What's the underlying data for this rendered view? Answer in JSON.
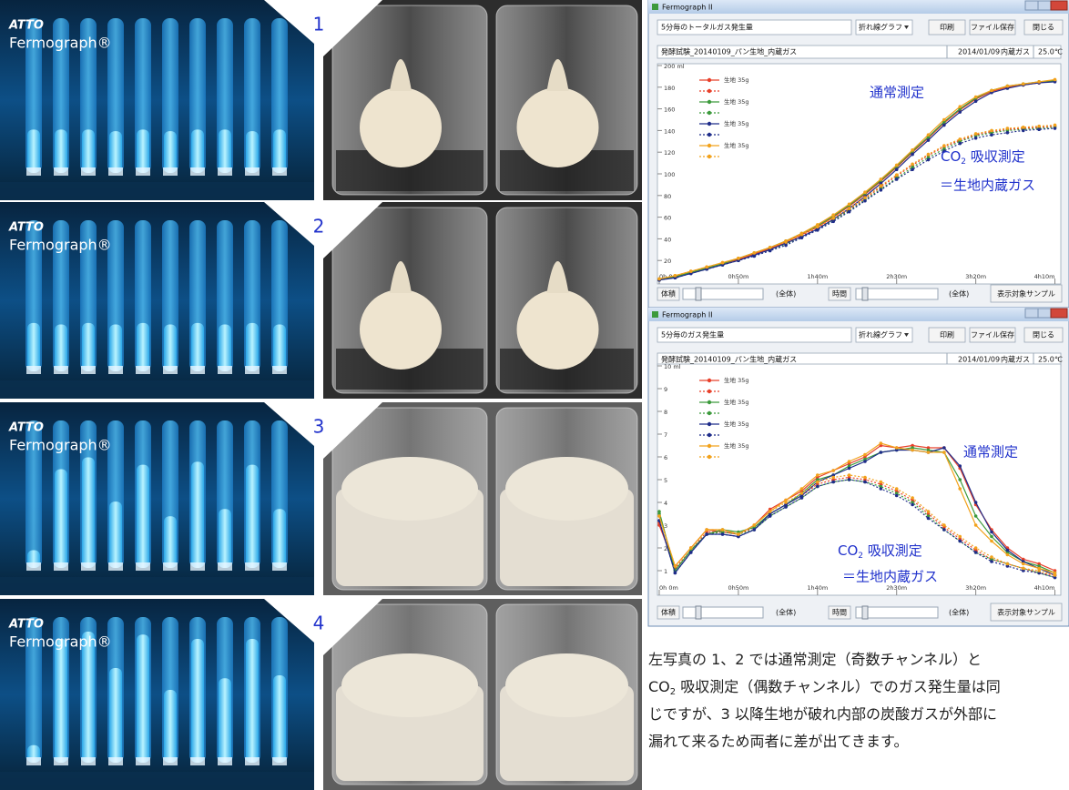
{
  "photos": {
    "logo": "ATTO",
    "product": "Fermograph®",
    "panels": [
      "1",
      "2",
      "3",
      "4"
    ]
  },
  "windows": [
    {
      "title": "Fermograph II",
      "measure": "5分毎のトータルガス発生量",
      "graph_type": "折れ線グラフ",
      "buttons": [
        "印刷",
        "ファイル保存",
        "閉じる"
      ],
      "file": "発酵試験_20140109_パン生地_内蔵ガス",
      "date": "2014/01/09",
      "gas": "内蔵ガス",
      "temp": "25.0℃",
      "controls": [
        "体積",
        "(全体)",
        "時間",
        "(全体)"
      ],
      "sample_button": "表示対象サンプル"
    },
    {
      "title": "Fermograph II",
      "measure": "5分毎のガス発生量",
      "graph_type": "折れ線グラフ",
      "buttons": [
        "印刷",
        "ファイル保存",
        "閉じる"
      ],
      "file": "発酵試験_20140109_パン生地_内蔵ガス",
      "date": "2014/01/09",
      "gas": "内蔵ガス",
      "temp": "25.0℃",
      "controls": [
        "体積",
        "(全体)",
        "時間",
        "(全体)"
      ],
      "sample_button": "表示対象サンプル"
    }
  ],
  "chart_data": [
    {
      "type": "line",
      "annotations": {
        "normal": "通常測定",
        "co2": [
          "CO",
          "2",
          " 吸収測定"
        ],
        "dough": "＝生地内蔵ガス"
      },
      "x": [
        0,
        10,
        20,
        30,
        40,
        50,
        60,
        70,
        80,
        90,
        100,
        110,
        120,
        130,
        140,
        150,
        160,
        170,
        180,
        190,
        200,
        210,
        220,
        230,
        240,
        250
      ],
      "xlim": [
        0,
        252
      ],
      "xticks": [
        {
          "value": 0,
          "label": "0h 0m"
        },
        {
          "value": 50,
          "label": "0h50m"
        },
        {
          "value": 100,
          "label": "1h40m"
        },
        {
          "value": 150,
          "label": "2h30m"
        },
        {
          "value": 200,
          "label": "3h20m"
        },
        {
          "value": 250,
          "label": "4h10m"
        }
      ],
      "ylim": [
        0,
        200
      ],
      "yticks": [
        20,
        40,
        60,
        80,
        100,
        120,
        140,
        160,
        180,
        {
          "value": 200,
          "label": "200 ml"
        }
      ],
      "grid": false,
      "series": [
        {
          "name": "生地 35g",
          "color": "#e8402a",
          "line_style": "solid",
          "values": [
            2,
            5,
            9,
            13,
            17,
            21,
            26,
            31,
            37,
            44,
            51,
            60,
            70,
            81,
            93,
            106,
            120,
            133,
            147,
            159,
            169,
            176,
            180,
            182,
            184,
            186
          ]
        },
        {
          "name": null,
          "color": "#e8402a",
          "line_style": "dashed",
          "values": [
            2,
            5,
            9,
            13,
            17,
            21,
            26,
            31,
            36,
            43,
            50,
            58,
            67,
            77,
            88,
            98,
            108,
            117,
            125,
            131,
            136,
            139,
            141,
            142,
            143,
            144
          ]
        },
        {
          "name": "生地 35g",
          "color": "#3c9a3c",
          "line_style": "solid",
          "values": [
            2,
            5,
            9,
            13,
            17,
            22,
            27,
            32,
            38,
            45,
            52,
            61,
            71,
            82,
            94,
            107,
            121,
            134,
            148,
            160,
            170,
            177,
            181,
            183,
            185,
            186
          ]
        },
        {
          "name": null,
          "color": "#3c9a3c",
          "line_style": "dashed",
          "values": [
            2,
            5,
            9,
            12,
            16,
            20,
            25,
            30,
            35,
            42,
            49,
            57,
            66,
            76,
            86,
            96,
            106,
            115,
            123,
            130,
            135,
            138,
            140,
            141,
            142,
            143
          ]
        },
        {
          "name": "生地 35g",
          "color": "#1f2d8a",
          "line_style": "solid",
          "values": [
            2,
            4,
            8,
            12,
            16,
            20,
            25,
            30,
            36,
            42,
            49,
            58,
            68,
            79,
            91,
            104,
            118,
            131,
            145,
            157,
            167,
            175,
            179,
            182,
            184,
            185
          ]
        },
        {
          "name": null,
          "color": "#1f2d8a",
          "line_style": "dashed",
          "values": [
            2,
            4,
            8,
            12,
            16,
            20,
            24,
            29,
            34,
            41,
            48,
            56,
            65,
            75,
            85,
            95,
            104,
            113,
            121,
            128,
            133,
            136,
            138,
            140,
            141,
            142
          ]
        },
        {
          "name": "生地 35g",
          "color": "#f2a21c",
          "line_style": "solid",
          "values": [
            3,
            6,
            10,
            14,
            18,
            22,
            27,
            32,
            38,
            45,
            53,
            62,
            72,
            83,
            95,
            108,
            122,
            136,
            150,
            162,
            171,
            177,
            181,
            183,
            185,
            187
          ]
        },
        {
          "name": null,
          "color": "#f2a21c",
          "line_style": "dashed",
          "values": [
            3,
            6,
            10,
            14,
            18,
            22,
            27,
            32,
            37,
            44,
            51,
            59,
            68,
            78,
            89,
            99,
            109,
            118,
            126,
            132,
            137,
            140,
            142,
            143,
            144,
            145
          ]
        }
      ]
    },
    {
      "type": "line",
      "annotations": {
        "normal": "通常測定",
        "co2": [
          "CO",
          "2",
          " 吸収測定"
        ],
        "dough": "＝生地内蔵ガス"
      },
      "x": [
        0,
        10,
        20,
        30,
        40,
        50,
        60,
        70,
        80,
        90,
        100,
        110,
        120,
        130,
        140,
        150,
        160,
        170,
        180,
        190,
        200,
        210,
        220,
        230,
        240,
        250
      ],
      "xlim": [
        0,
        252
      ],
      "xticks": [
        {
          "value": 0,
          "label": "0h 0m"
        },
        {
          "value": 50,
          "label": "0h50m"
        },
        {
          "value": 100,
          "label": "1h40m"
        },
        {
          "value": 150,
          "label": "2h30m"
        },
        {
          "value": 200,
          "label": "3h20m"
        },
        {
          "value": 250,
          "label": "4h10m"
        }
      ],
      "ylim": [
        0,
        10
      ],
      "yticks": [
        1,
        2,
        3,
        4,
        5,
        6,
        7,
        8,
        9,
        {
          "value": 10,
          "label": "10 ml"
        }
      ],
      "grid": false,
      "series": [
        {
          "name": "生地 35g",
          "color": "#e8402a",
          "line_style": "solid",
          "values": [
            3.0,
            1.2,
            2.0,
            2.8,
            2.7,
            2.6,
            3.0,
            3.7,
            4.1,
            4.5,
            5.1,
            5.4,
            5.7,
            6.0,
            6.5,
            6.4,
            6.5,
            6.4,
            6.4,
            5.5,
            3.9,
            2.8,
            2.0,
            1.5,
            1.3,
            1.0
          ]
        },
        {
          "name": null,
          "color": "#e8402a",
          "line_style": "dashed",
          "values": [
            3.1,
            1.1,
            1.9,
            2.7,
            2.7,
            2.6,
            2.9,
            3.5,
            3.9,
            4.3,
            4.8,
            5.0,
            5.1,
            5.0,
            4.8,
            4.5,
            4.1,
            3.5,
            2.9,
            2.4,
            1.9,
            1.5,
            1.3,
            1.1,
            0.9,
            0.8
          ]
        },
        {
          "name": "生地 35g",
          "color": "#3c9a3c",
          "line_style": "solid",
          "values": [
            3.6,
            1.0,
            1.9,
            2.6,
            2.8,
            2.7,
            2.9,
            3.5,
            3.9,
            4.4,
            5.0,
            5.2,
            5.6,
            5.9,
            6.2,
            6.3,
            6.4,
            6.3,
            6.2,
            5.0,
            3.4,
            2.5,
            1.8,
            1.4,
            1.2,
            0.9
          ]
        },
        {
          "name": null,
          "color": "#3c9a3c",
          "line_style": "dashed",
          "values": [
            3.5,
            1.0,
            1.9,
            2.6,
            2.7,
            2.6,
            2.8,
            3.4,
            3.8,
            4.2,
            4.7,
            4.9,
            5.0,
            4.9,
            4.7,
            4.4,
            4.0,
            3.4,
            2.8,
            2.3,
            1.8,
            1.5,
            1.3,
            1.1,
            0.9,
            0.7
          ]
        },
        {
          "name": "生地 35g",
          "color": "#1f2d8a",
          "line_style": "solid",
          "values": [
            3.2,
            0.9,
            1.8,
            2.6,
            2.6,
            2.5,
            2.8,
            3.5,
            3.9,
            4.3,
            4.9,
            5.2,
            5.5,
            5.8,
            6.2,
            6.3,
            6.3,
            6.2,
            6.4,
            5.6,
            4.0,
            2.7,
            1.9,
            1.4,
            1.1,
            0.8
          ]
        },
        {
          "name": null,
          "color": "#1f2d8a",
          "line_style": "dashed",
          "values": [
            3.2,
            0.9,
            1.8,
            2.6,
            2.6,
            2.5,
            2.8,
            3.4,
            3.8,
            4.2,
            4.7,
            4.9,
            5.0,
            4.9,
            4.6,
            4.3,
            3.9,
            3.3,
            2.8,
            2.3,
            1.8,
            1.4,
            1.2,
            1.0,
            0.9,
            0.7
          ]
        },
        {
          "name": "生地 35g",
          "color": "#f2a21c",
          "line_style": "solid",
          "values": [
            3.4,
            1.2,
            2.0,
            2.8,
            2.8,
            2.6,
            3.0,
            3.6,
            4.1,
            4.6,
            5.2,
            5.4,
            5.8,
            6.1,
            6.6,
            6.4,
            6.3,
            6.2,
            6.2,
            4.6,
            3.0,
            2.3,
            1.7,
            1.3,
            1.1,
            0.9
          ]
        },
        {
          "name": null,
          "color": "#f2a21c",
          "line_style": "dashed",
          "values": [
            3.4,
            1.2,
            2.0,
            2.8,
            2.8,
            2.6,
            3.0,
            3.6,
            4.0,
            4.4,
            4.9,
            5.1,
            5.2,
            5.1,
            4.9,
            4.6,
            4.2,
            3.6,
            3.0,
            2.5,
            2.0,
            1.6,
            1.3,
            1.1,
            1.0,
            0.8
          ]
        }
      ]
    }
  ],
  "caption": [
    [
      "左写真の 1、2 では通常測定（奇数チャンネル）と"
    ],
    [
      "CO",
      "2",
      " 吸収測定（偶数チャンネル）でのガス発生量は同"
    ],
    [
      "じですが、3 以降生地が破れ内部の炭酸ガスが外部に"
    ],
    [
      "漏れて来るため両者に差が出てきます。"
    ]
  ]
}
